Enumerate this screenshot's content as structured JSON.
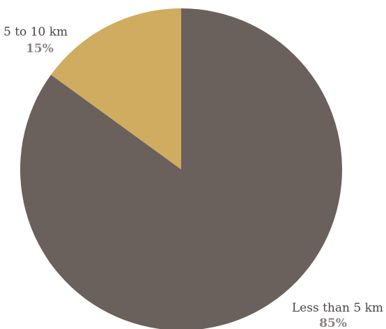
{
  "chart_data": {
    "type": "pie",
    "slices": [
      {
        "label": "Less than 5 km",
        "value": 85,
        "value_label": "85%",
        "color": "#6a615d"
      },
      {
        "label": "5 to 10 km",
        "value": 15,
        "value_label": "15%",
        "color": "#cfac5f"
      }
    ],
    "start_angle_deg": 0,
    "direction": "clockwise",
    "legend": "none",
    "background": "#ffffff"
  }
}
